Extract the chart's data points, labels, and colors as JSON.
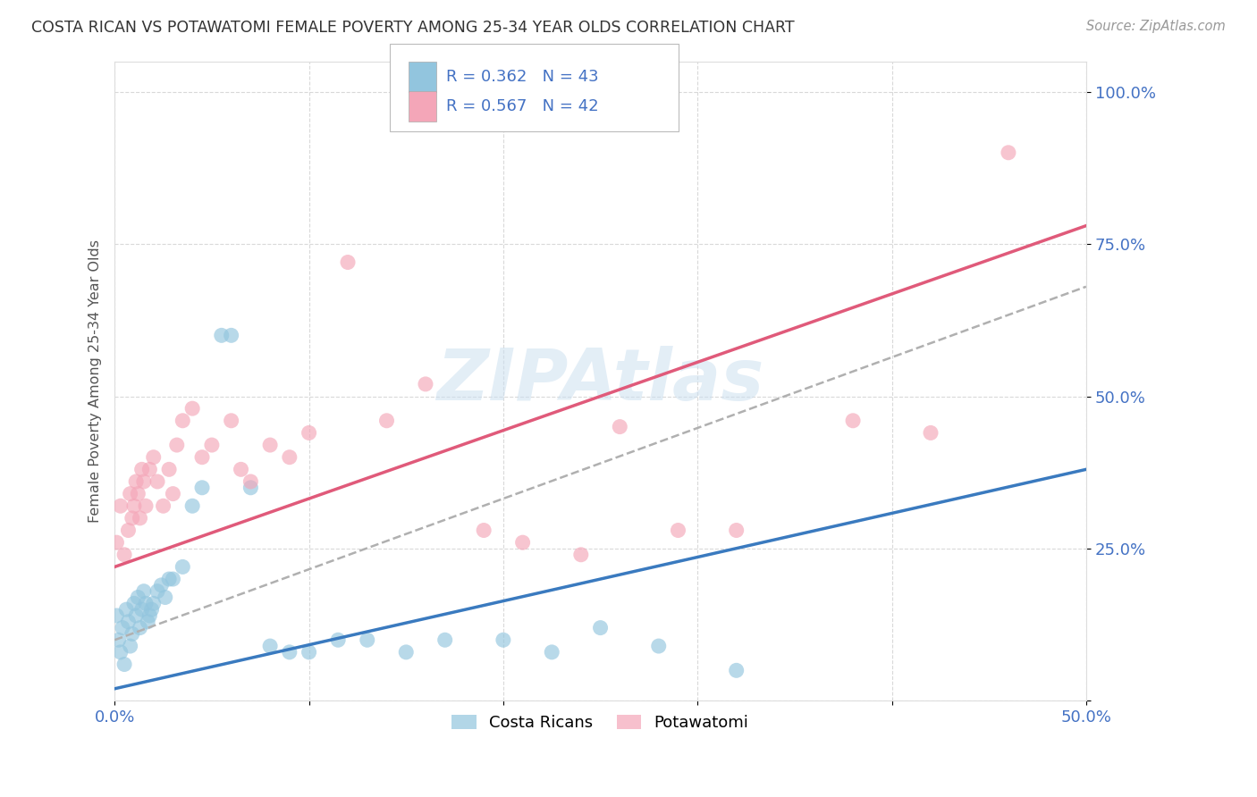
{
  "title": "COSTA RICAN VS POTAWATOMI FEMALE POVERTY AMONG 25-34 YEAR OLDS CORRELATION CHART",
  "source": "Source: ZipAtlas.com",
  "ylabel": "Female Poverty Among 25-34 Year Olds",
  "watermark": "ZIPAtlas",
  "xmin": 0.0,
  "xmax": 0.5,
  "ymin": 0.0,
  "ymax": 1.05,
  "xticks": [
    0.0,
    0.1,
    0.2,
    0.3,
    0.4,
    0.5
  ],
  "xticklabels": [
    "0.0%",
    "",
    "",
    "",
    "",
    "50.0%"
  ],
  "yticks": [
    0.0,
    0.25,
    0.5,
    0.75,
    1.0
  ],
  "yticklabels": [
    "",
    "25.0%",
    "50.0%",
    "75.0%",
    "100.0%"
  ],
  "blue_color": "#92c5de",
  "pink_color": "#f4a6b8",
  "blue_line_color": "#3a7abf",
  "pink_line_color": "#e05a7a",
  "dashed_line_color": "#b0b0b0",
  "legend_r_blue": "R = 0.362",
  "legend_n_blue": "N = 43",
  "legend_r_pink": "R = 0.567",
  "legend_n_pink": "N = 42",
  "legend_label_blue": "Costa Ricans",
  "legend_label_pink": "Potawatomi",
  "blue_scatter_x": [
    0.001,
    0.002,
    0.003,
    0.004,
    0.005,
    0.006,
    0.007,
    0.008,
    0.009,
    0.01,
    0.011,
    0.012,
    0.013,
    0.014,
    0.015,
    0.016,
    0.017,
    0.018,
    0.019,
    0.02,
    0.022,
    0.024,
    0.026,
    0.028,
    0.03,
    0.035,
    0.04,
    0.045,
    0.055,
    0.06,
    0.07,
    0.08,
    0.09,
    0.1,
    0.115,
    0.13,
    0.15,
    0.17,
    0.2,
    0.225,
    0.25,
    0.28,
    0.32
  ],
  "blue_scatter_y": [
    0.14,
    0.1,
    0.08,
    0.12,
    0.06,
    0.15,
    0.13,
    0.09,
    0.11,
    0.16,
    0.14,
    0.17,
    0.12,
    0.15,
    0.18,
    0.16,
    0.13,
    0.14,
    0.15,
    0.16,
    0.18,
    0.19,
    0.17,
    0.2,
    0.2,
    0.22,
    0.32,
    0.35,
    0.6,
    0.6,
    0.35,
    0.09,
    0.08,
    0.08,
    0.1,
    0.1,
    0.08,
    0.1,
    0.1,
    0.08,
    0.12,
    0.09,
    0.05
  ],
  "pink_scatter_x": [
    0.001,
    0.003,
    0.005,
    0.007,
    0.008,
    0.009,
    0.01,
    0.011,
    0.012,
    0.013,
    0.014,
    0.015,
    0.016,
    0.018,
    0.02,
    0.022,
    0.025,
    0.028,
    0.03,
    0.032,
    0.035,
    0.04,
    0.045,
    0.05,
    0.06,
    0.065,
    0.07,
    0.08,
    0.09,
    0.1,
    0.12,
    0.14,
    0.16,
    0.19,
    0.21,
    0.24,
    0.26,
    0.29,
    0.32,
    0.38,
    0.42,
    0.46
  ],
  "pink_scatter_y": [
    0.26,
    0.32,
    0.24,
    0.28,
    0.34,
    0.3,
    0.32,
    0.36,
    0.34,
    0.3,
    0.38,
    0.36,
    0.32,
    0.38,
    0.4,
    0.36,
    0.32,
    0.38,
    0.34,
    0.42,
    0.46,
    0.48,
    0.4,
    0.42,
    0.46,
    0.38,
    0.36,
    0.42,
    0.4,
    0.44,
    0.72,
    0.46,
    0.52,
    0.28,
    0.26,
    0.24,
    0.45,
    0.28,
    0.28,
    0.46,
    0.44,
    0.9
  ],
  "blue_line_x": [
    0.0,
    0.5
  ],
  "blue_line_y": [
    0.02,
    0.38
  ],
  "pink_line_x": [
    0.0,
    0.5
  ],
  "pink_line_y": [
    0.22,
    0.78
  ],
  "dashed_line_x": [
    0.0,
    0.5
  ],
  "dashed_line_y": [
    0.1,
    0.68
  ],
  "grid_color": "#d0d0d0",
  "background_color": "#ffffff",
  "title_color": "#333333",
  "axis_label_color": "#555555",
  "tick_label_color": "#4472c4",
  "source_color": "#999999"
}
